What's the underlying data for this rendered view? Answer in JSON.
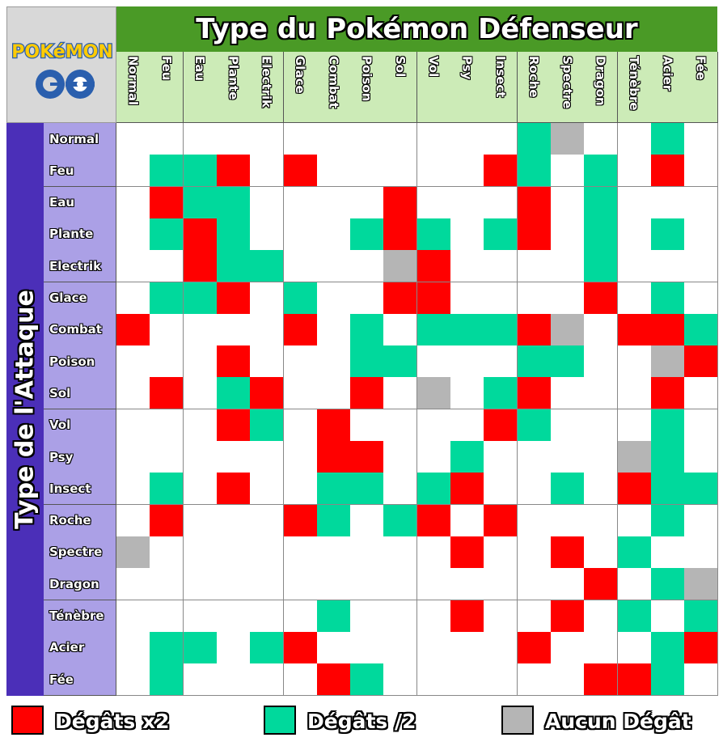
{
  "header": {
    "logo_top": "POKéMON",
    "logo_bottom": "GO",
    "defender_title": "Type du Pokémon Défenseur",
    "attack_title": "Type de l'Attaque"
  },
  "colors": {
    "super_effective": "#ff0000",
    "not_very_effective": "#00d99c",
    "no_damage": "#b5b5b5",
    "neutral": "#ffffff",
    "header_green": "#4a9a26",
    "column_header": "#ccebb7",
    "attack_band": "#4b2fb8",
    "row_header": "#aba0e6"
  },
  "legend": [
    {
      "label": "Dégâts x2",
      "key": "super_effective"
    },
    {
      "label": "Dégâts /2",
      "key": "not_very_effective"
    },
    {
      "label": "Aucun Dégât",
      "key": "no_damage"
    }
  ],
  "chart_data": {
    "type": "heatmap",
    "x_title": "Type du Pokémon Défenseur",
    "y_title": "Type de l'Attaque",
    "columns": [
      "Normal",
      "Feu",
      "Eau",
      "Plante",
      "Electrik",
      "Glace",
      "Combat",
      "Poison",
      "Sol",
      "Vol",
      "Psy",
      "Insect",
      "Roche",
      "Spectre",
      "Dragon",
      "Ténèbre",
      "Acier",
      "Fée"
    ],
    "rows": [
      "Normal",
      "Feu",
      "Eau",
      "Plante",
      "Electrik",
      "Glace",
      "Combat",
      "Poison",
      "Sol",
      "Vol",
      "Psy",
      "Insect",
      "Roche",
      "Spectre",
      "Dragon",
      "Ténèbre",
      "Acier",
      "Fée"
    ],
    "values_legend": {
      "2": "Dégâts x2",
      "0.5": "Dégâts /2",
      "0": "Aucun Dégât",
      "1": "neutral"
    },
    "values": [
      [
        1,
        1,
        1,
        1,
        1,
        1,
        1,
        1,
        1,
        1,
        1,
        1,
        0.5,
        0,
        1,
        1,
        0.5,
        1
      ],
      [
        1,
        0.5,
        0.5,
        2,
        1,
        2,
        1,
        1,
        1,
        1,
        1,
        2,
        0.5,
        1,
        0.5,
        1,
        2,
        1
      ],
      [
        1,
        2,
        0.5,
        0.5,
        1,
        1,
        1,
        1,
        2,
        1,
        1,
        1,
        2,
        1,
        0.5,
        1,
        1,
        1
      ],
      [
        1,
        0.5,
        2,
        0.5,
        1,
        1,
        1,
        0.5,
        2,
        0.5,
        1,
        0.5,
        2,
        1,
        0.5,
        1,
        0.5,
        1
      ],
      [
        1,
        1,
        2,
        0.5,
        0.5,
        1,
        1,
        1,
        0,
        2,
        1,
        1,
        1,
        1,
        0.5,
        1,
        1,
        1
      ],
      [
        1,
        0.5,
        0.5,
        2,
        1,
        0.5,
        1,
        1,
        2,
        2,
        1,
        1,
        1,
        1,
        2,
        1,
        0.5,
        1
      ],
      [
        2,
        1,
        1,
        1,
        1,
        2,
        1,
        0.5,
        1,
        0.5,
        0.5,
        0.5,
        2,
        0,
        1,
        2,
        2,
        0.5
      ],
      [
        1,
        1,
        1,
        2,
        1,
        1,
        1,
        0.5,
        0.5,
        1,
        1,
        1,
        0.5,
        0.5,
        1,
        1,
        0,
        2
      ],
      [
        1,
        2,
        1,
        0.5,
        2,
        1,
        1,
        2,
        1,
        0,
        1,
        0.5,
        2,
        1,
        1,
        1,
        2,
        1
      ],
      [
        1,
        1,
        1,
        2,
        0.5,
        1,
        2,
        1,
        1,
        1,
        1,
        2,
        0.5,
        1,
        1,
        1,
        0.5,
        1
      ],
      [
        1,
        1,
        1,
        1,
        1,
        1,
        2,
        2,
        1,
        1,
        0.5,
        1,
        1,
        1,
        1,
        0,
        0.5,
        1
      ],
      [
        1,
        0.5,
        1,
        2,
        1,
        1,
        0.5,
        0.5,
        1,
        0.5,
        2,
        1,
        1,
        0.5,
        1,
        2,
        0.5,
        0.5
      ],
      [
        1,
        2,
        1,
        1,
        1,
        2,
        0.5,
        1,
        0.5,
        2,
        1,
        2,
        1,
        1,
        1,
        1,
        0.5,
        1
      ],
      [
        0,
        1,
        1,
        1,
        1,
        1,
        1,
        1,
        1,
        1,
        2,
        1,
        1,
        2,
        1,
        0.5,
        1,
        1
      ],
      [
        1,
        1,
        1,
        1,
        1,
        1,
        1,
        1,
        1,
        1,
        1,
        1,
        1,
        1,
        2,
        1,
        0.5,
        0
      ],
      [
        1,
        1,
        1,
        1,
        1,
        1,
        0.5,
        1,
        1,
        1,
        2,
        1,
        1,
        2,
        1,
        0.5,
        1,
        0.5
      ],
      [
        1,
        0.5,
        0.5,
        1,
        0.5,
        2,
        1,
        1,
        1,
        1,
        1,
        1,
        2,
        1,
        1,
        1,
        0.5,
        2
      ],
      [
        1,
        0.5,
        1,
        1,
        1,
        1,
        2,
        0.5,
        1,
        1,
        1,
        1,
        1,
        1,
        2,
        2,
        0.5,
        1
      ]
    ]
  }
}
